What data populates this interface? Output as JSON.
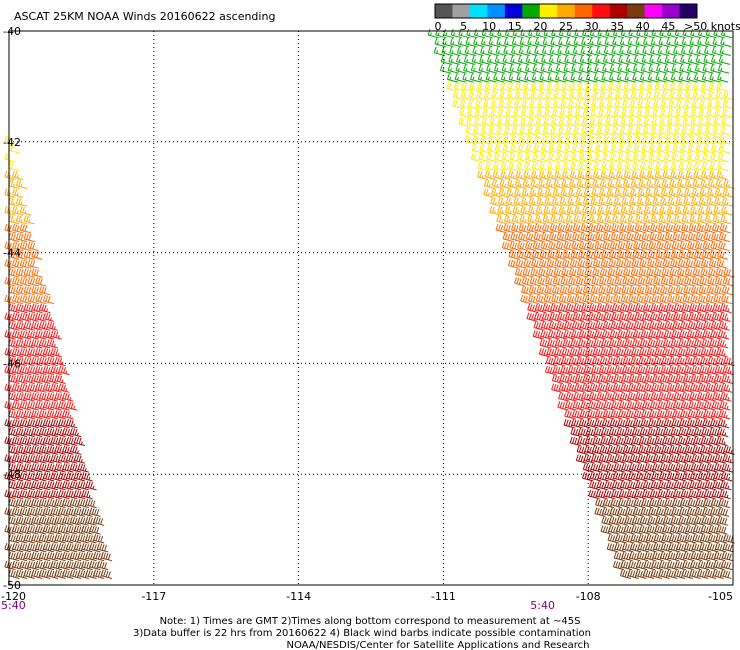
{
  "chart_data": {
    "type": "scatter",
    "title": "ASCAT 25KM NOAA Winds 20160622 ascending",
    "xlabel": "",
    "ylabel": "",
    "xlim": [
      -120,
      -105
    ],
    "ylim": [
      -50,
      -40
    ],
    "grid": true,
    "x_ticks": [
      "-120",
      "-117",
      "-114",
      "-111",
      "-108",
      "-105"
    ],
    "y_ticks": [
      "-40",
      "-42",
      "-44",
      "-46",
      "-48",
      "-50"
    ],
    "time_labels": [
      {
        "x": -120,
        "label": "5:40"
      },
      {
        "x": -109.2,
        "label": "5:40"
      }
    ],
    "legend": {
      "placement": "top-right",
      "units": "knots",
      "ticks": [
        "0",
        "5",
        "10",
        "15",
        "20",
        "25",
        "30",
        "35",
        "40",
        "45",
        ">50 knots"
      ],
      "colors": [
        "#555555",
        "#a0a0a0",
        "#00e0ff",
        "#0090ff",
        "#0000dd",
        "#00aa00",
        "#ffee00",
        "#ffaa00",
        "#ff6600",
        "#ff1010",
        "#aa0000",
        "#7a3b10",
        "#ff00ff",
        "#9900cc",
        "#220066"
      ]
    },
    "swaths": [
      {
        "name": "west",
        "lat_range": [
          -50,
          -41.6
        ],
        "lon_west": -120,
        "lon_east_at_top": -120,
        "lon_east_at_bottom": -117.8
      },
      {
        "name": "east",
        "lat_range": [
          -50,
          -40
        ],
        "lon_west_at_top": -111.3,
        "lon_west_at_bottom": -107.3,
        "lon_east": -105
      }
    ],
    "speed_bands": [
      {
        "lat_min": -41.0,
        "lat_max": -40.0,
        "speed_kt": 15,
        "color": "#00aa00"
      },
      {
        "lat_min": -42.5,
        "lat_max": -41.0,
        "speed_kt": 22,
        "color": "#ffee00"
      },
      {
        "lat_min": -43.5,
        "lat_max": -42.5,
        "speed_kt": 25,
        "color": "#ffaa00"
      },
      {
        "lat_min": -45.0,
        "lat_max": -43.5,
        "speed_kt": 30,
        "color": "#ff6600"
      },
      {
        "lat_min": -47.0,
        "lat_max": -45.0,
        "speed_kt": 35,
        "color": "#ff1010"
      },
      {
        "lat_min": -48.5,
        "lat_max": -47.0,
        "speed_kt": 38,
        "color": "#aa0000"
      },
      {
        "lat_min": -50.0,
        "lat_max": -48.5,
        "speed_kt": 40,
        "color": "#7a3b10"
      }
    ]
  },
  "notes": {
    "line1": "Note: 1) Times are GMT 2)Times along bottom correspond to measurement at ~45S",
    "line2": "3)Data buffer is 22 hrs from 20160622 4) Black wind barbs indicate possible contamination",
    "line3": "NOAA/NESDIS/Center for Satellite Applications and Research"
  }
}
